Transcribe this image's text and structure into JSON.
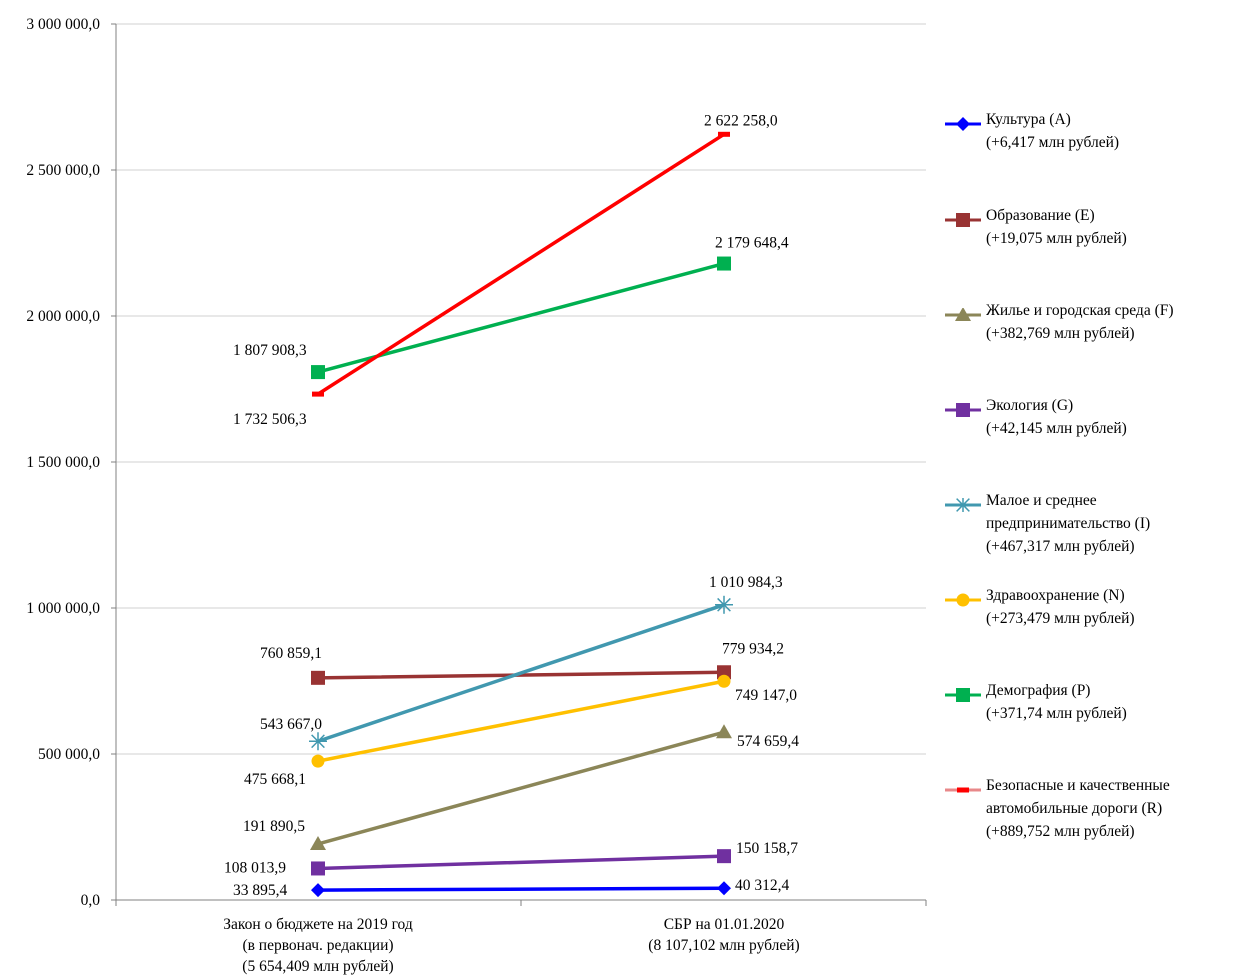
{
  "chart_data": {
    "type": "line",
    "categories": [
      [
        "Закон о бюджете на 2019 год",
        "(в первонач. редакции)",
        "(5 654,409 млн рублей)"
      ],
      [
        "СБР на 01.01.2020",
        "(8 107,102 млн рублей)"
      ]
    ],
    "ylim": [
      0,
      3000000
    ],
    "yticks": [
      0,
      500000,
      1000000,
      1500000,
      2000000,
      2500000,
      3000000
    ],
    "ytick_labels": [
      "0,0",
      "500 000,0",
      "1 000 000,0",
      "1 500 000,0",
      "2 000 000,0",
      "2 500 000,0",
      "3 000 000,0"
    ],
    "grid": "horizontal",
    "legend_position": "right",
    "series": [
      {
        "key": "A",
        "name": "Культура (A)",
        "change": "(+6,417  млн рублей)",
        "color": "#0000ff",
        "marker": "diamond",
        "values": [
          33895.4,
          40312.4
        ],
        "labels": [
          "33 895,4",
          "40 312,4"
        ]
      },
      {
        "key": "E",
        "name": "Образование (E)",
        "change": "(+19,075  млн рублей)",
        "color": "#993333",
        "marker": "square",
        "values": [
          760859.1,
          779934.2
        ],
        "labels": [
          "760 859,1",
          "779 934,2"
        ]
      },
      {
        "key": "F",
        "name": "Жилье и городская среда (F)",
        "change": "(+382,769  млн рублей)",
        "color": "#8b8658",
        "marker": "triangle",
        "values": [
          191890.5,
          574659.4
        ],
        "labels": [
          "191 890,5",
          "574 659,4"
        ]
      },
      {
        "key": "G",
        "name": "Экология (G)",
        "change": "(+42,145  млн рублей)",
        "color": "#7030a0",
        "marker": "square",
        "values": [
          108013.9,
          150158.7
        ],
        "labels": [
          "108 013,9",
          "150 158,7"
        ]
      },
      {
        "key": "I",
        "name": "Малое и среднее предпринимательство (I)",
        "name_lines": [
          "Малое и среднее",
          "предпринимательство (I)"
        ],
        "change": "(+467,317  млн рублей)",
        "color": "#4198af",
        "marker": "star",
        "values": [
          543667.0,
          1010984.3
        ],
        "labels": [
          "543 667,0",
          "1 010 984,3"
        ]
      },
      {
        "key": "N",
        "name": "Здравоохранение (N)",
        "change": "(+273,479  млн рублей)",
        "color": "#ffc000",
        "marker": "circle",
        "values": [
          475668.1,
          749147.0
        ],
        "labels": [
          "475 668,1",
          "749 147,0"
        ]
      },
      {
        "key": "P",
        "name": "Демография (P)",
        "change": "(+371,74  млн рублей)",
        "color": "#00b050",
        "marker": "square",
        "values": [
          1807908.3,
          2179648.4
        ],
        "labels": [
          "1 807 908,3",
          "2 179 648,4"
        ]
      },
      {
        "key": "R",
        "name": "Безопасные и качественные автомобильные дороги (R)",
        "name_lines": [
          "Безопасные и качественные",
          "автомобильные дороги (R)"
        ],
        "change": "(+889,752  млн рублей)",
        "color": "#ff0000",
        "legend_color": "#e8888a",
        "marker": "dash",
        "values": [
          1732506.3,
          2622258.0
        ],
        "labels": [
          "1 732 506,3",
          "2 622 258,0"
        ]
      }
    ]
  }
}
